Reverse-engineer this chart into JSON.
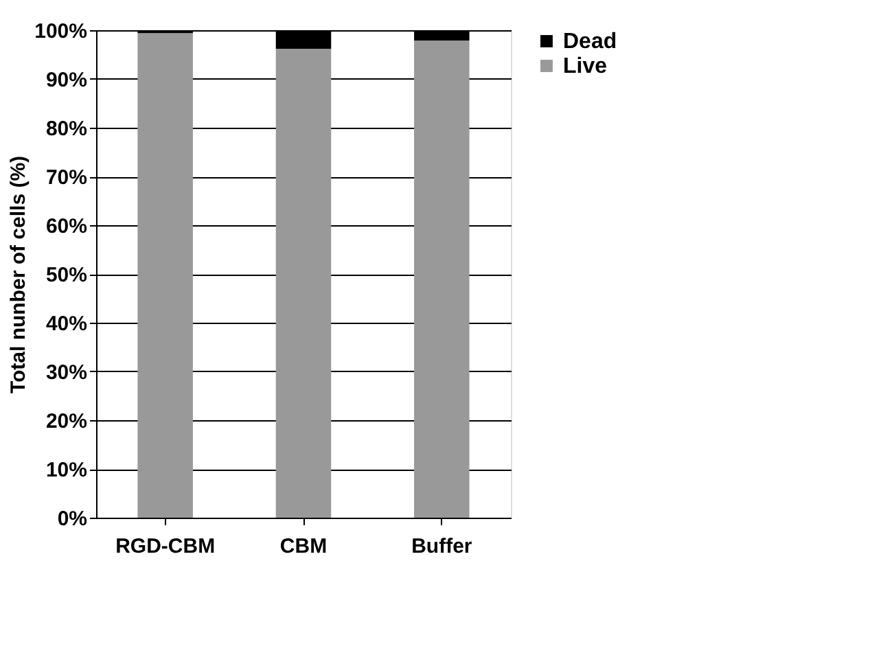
{
  "chart_data": {
    "type": "bar",
    "stacked": true,
    "ylabel": "Total nunber of cells (%)",
    "categories": [
      "RGD-CBM",
      "CBM",
      "Buffer"
    ],
    "series": [
      {
        "name": "Live",
        "color": "#999999",
        "values": [
          99.4,
          96.2,
          97.9
        ]
      },
      {
        "name": "Dead",
        "color": "#000000",
        "values": [
          0.6,
          3.8,
          2.1
        ]
      }
    ],
    "ylim": [
      0,
      100
    ],
    "yticks": [
      {
        "value": 0,
        "label": "0%"
      },
      {
        "value": 10,
        "label": "10%"
      },
      {
        "value": 20,
        "label": "20%"
      },
      {
        "value": 30,
        "label": "30%"
      },
      {
        "value": 40,
        "label": "40%"
      },
      {
        "value": 50,
        "label": "50%"
      },
      {
        "value": 60,
        "label": "60%"
      },
      {
        "value": 70,
        "label": "70%"
      },
      {
        "value": 80,
        "label": "80%"
      },
      {
        "value": 90,
        "label": "90%"
      },
      {
        "value": 100,
        "label": "100%"
      }
    ],
    "grid": "y",
    "legend": "right"
  }
}
